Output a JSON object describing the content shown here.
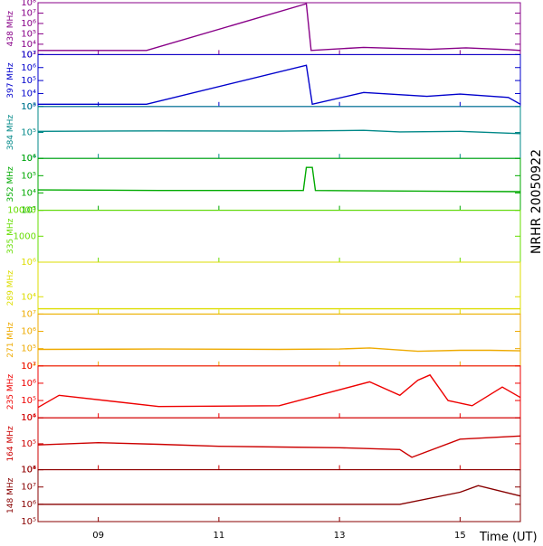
{
  "chart_data": {
    "type": "line",
    "side_label": "NRHR 20050922",
    "xlabel": "Time (UT)",
    "x_range_hours": [
      8.0,
      16.0
    ],
    "x_ticks": [
      {
        "hour": 9,
        "label": "09"
      },
      {
        "hour": 11,
        "label": "11"
      },
      {
        "hour": 13,
        "label": "13"
      },
      {
        "hour": 15,
        "label": "15"
      }
    ],
    "y_scale": "log",
    "panels": [
      {
        "name": "438 MHz",
        "color": "#880088",
        "ylim": [
          1000,
          100000000
        ],
        "y_ticks": [
          {
            "v": 1000,
            "label": "10³"
          },
          {
            "v": 10000,
            "label": "10⁴"
          },
          {
            "v": 100000,
            "label": "10⁵"
          },
          {
            "v": 1000000,
            "label": "10⁶"
          },
          {
            "v": 10000000,
            "label": "10⁷"
          },
          {
            "v": 100000000,
            "label": "10⁸"
          }
        ],
        "series": {
          "x": [
            8.0,
            9.8,
            12.45,
            12.53,
            13.4,
            14.5,
            15.1,
            15.8,
            16.0
          ],
          "y": [
            2500,
            2500,
            80000000,
            2500,
            5000,
            3200,
            4500,
            3000,
            2500
          ]
        }
      },
      {
        "name": "397 MHz",
        "color": "#0000cc",
        "ylim": [
          1000,
          10000000
        ],
        "y_ticks": [
          {
            "v": 1000,
            "label": "10³"
          },
          {
            "v": 10000,
            "label": "10⁴"
          },
          {
            "v": 100000,
            "label": "10⁵"
          },
          {
            "v": 1000000,
            "label": "10⁶"
          },
          {
            "v": 10000000,
            "label": "10⁷"
          }
        ],
        "series": {
          "x": [
            8.0,
            9.8,
            12.45,
            12.55,
            13.4,
            14.45,
            15.0,
            15.8,
            16.0
          ],
          "y": [
            1500,
            1500,
            1500000,
            1500,
            12000,
            6000,
            9000,
            5000,
            1500
          ]
        }
      },
      {
        "name": "384 MHz",
        "color": "#008888",
        "ylim": [
          10000,
          1000000
        ],
        "y_ticks": [
          {
            "v": 10000,
            "label": "10⁴"
          },
          {
            "v": 100000,
            "label": "10⁵"
          },
          {
            "v": 1000000,
            "label": "10⁶"
          }
        ],
        "series": {
          "x": [
            8.0,
            10.0,
            12.0,
            13.4,
            14.0,
            15.0,
            16.0
          ],
          "y": [
            110000,
            115000,
            112000,
            120000,
            105000,
            110000,
            90000
          ]
        }
      },
      {
        "name": "352 MHz",
        "color": "#00aa00",
        "ylim": [
          1000,
          1000000
        ],
        "y_ticks": [
          {
            "v": 1000,
            "label": "10³"
          },
          {
            "v": 10000,
            "label": "10⁴"
          },
          {
            "v": 100000,
            "label": "10⁵"
          },
          {
            "v": 1000000,
            "label": "10⁶"
          }
        ],
        "series": {
          "x": [
            8.0,
            10.0,
            12.4,
            12.45,
            12.55,
            12.6,
            14.0,
            16.0
          ],
          "y": [
            15000,
            14000,
            14000,
            300000,
            300000,
            14000,
            13000,
            12000
          ]
        }
      },
      {
        "name": "335 MHz",
        "color": "#66dd00",
        "ylim": [
          100,
          10000
        ],
        "y_ticks": [
          {
            "v": 1000,
            "label": "1000"
          },
          {
            "v": 10000,
            "label": "10000"
          }
        ],
        "series": {
          "x": [],
          "y": []
        }
      },
      {
        "name": "289 MHz",
        "color": "#dddd00",
        "ylim": [
          1000,
          1000000
        ],
        "y_ticks": [
          {
            "v": 10000,
            "label": "10⁴"
          },
          {
            "v": 1000000,
            "label": "10⁶"
          }
        ],
        "series": {
          "x": [
            8.0,
            13.4,
            14.5,
            15.0,
            15.9,
            16.0
          ],
          "y": [
            2000,
            2000,
            2000,
            2000,
            2000,
            2000
          ]
        }
      },
      {
        "name": "271 MHz",
        "color": "#eeaa00",
        "ylim": [
          10000,
          10000000
        ],
        "y_ticks": [
          {
            "v": 10000,
            "label": "10⁴"
          },
          {
            "v": 100000,
            "label": "10⁵"
          },
          {
            "v": 1000000,
            "label": "10⁶"
          },
          {
            "v": 10000000,
            "label": "10⁷"
          }
        ],
        "series": {
          "x": [
            8.0,
            10.0,
            12.0,
            13.0,
            13.5,
            14.3,
            15.0,
            15.5,
            16.0
          ],
          "y": [
            90000,
            95000,
            90000,
            95000,
            110000,
            70000,
            80000,
            80000,
            75000
          ]
        }
      },
      {
        "name": "235 MHz",
        "color": "#ee0000",
        "ylim": [
          10000,
          10000000
        ],
        "y_ticks": [
          {
            "v": 10000,
            "label": "10⁴"
          },
          {
            "v": 100000,
            "label": "10⁵"
          },
          {
            "v": 1000000,
            "label": "10⁶"
          },
          {
            "v": 10000000,
            "label": "10⁷"
          }
        ],
        "series": {
          "x": [
            8.0,
            8.35,
            10.0,
            12.0,
            13.5,
            14.0,
            14.3,
            14.5,
            14.8,
            15.2,
            15.7,
            16.0
          ],
          "y": [
            40000,
            200000,
            45000,
            50000,
            1200000,
            200000,
            1500000,
            3000000,
            100000,
            50000,
            600000,
            150000
          ]
        }
      },
      {
        "name": "164 MHz",
        "color": "#cc0000",
        "ylim": [
          10000,
          1000000
        ],
        "y_ticks": [
          {
            "v": 10000,
            "label": "10⁴"
          },
          {
            "v": 100000,
            "label": "10⁵"
          },
          {
            "v": 1000000,
            "label": "10⁶"
          }
        ],
        "series": {
          "x": [
            8.0,
            9.0,
            10.0,
            11.0,
            12.0,
            13.0,
            14.0,
            14.2,
            15.0,
            16.0
          ],
          "y": [
            90000,
            110000,
            95000,
            80000,
            75000,
            70000,
            60000,
            30000,
            150000,
            200000
          ]
        }
      },
      {
        "name": "148 MHz",
        "color": "#880000",
        "ylim": [
          100000,
          100000000
        ],
        "y_ticks": [
          {
            "v": 100000,
            "label": "10⁵"
          },
          {
            "v": 1000000,
            "label": "10⁶"
          },
          {
            "v": 10000000,
            "label": "10⁷"
          },
          {
            "v": 100000000,
            "label": "10⁸"
          }
        ],
        "series": {
          "x": [
            8.0,
            10.0,
            12.0,
            14.0,
            15.0,
            15.3,
            16.0
          ],
          "y": [
            1000000,
            1000000,
            1000000,
            1000000,
            5000000,
            12000000,
            3000000
          ]
        }
      }
    ]
  }
}
